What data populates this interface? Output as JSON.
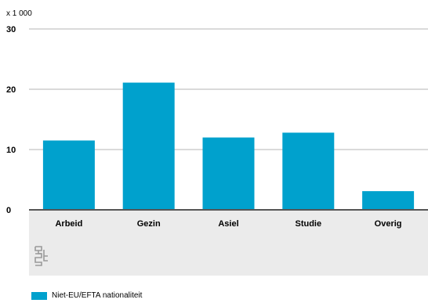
{
  "chart_data": {
    "type": "bar",
    "unit_label": "x 1 000",
    "categories": [
      "Arbeid",
      "Gezin",
      "Asiel",
      "Studie",
      "Overig"
    ],
    "series": [
      {
        "name": "Niet-EU/EFTA nationaliteit",
        "values": [
          11.5,
          21.1,
          12.0,
          12.8,
          3.1
        ]
      }
    ],
    "ylim": [
      0,
      30
    ],
    "yticks": [
      "0",
      "10",
      "20",
      "30"
    ],
    "grid": true,
    "legend_position": "bottom-left",
    "colors": {
      "bar": "#00a1cd",
      "axis_band": "#ebebeb",
      "grid": "#b4b4b4"
    },
    "logo": "cbs-logo"
  }
}
